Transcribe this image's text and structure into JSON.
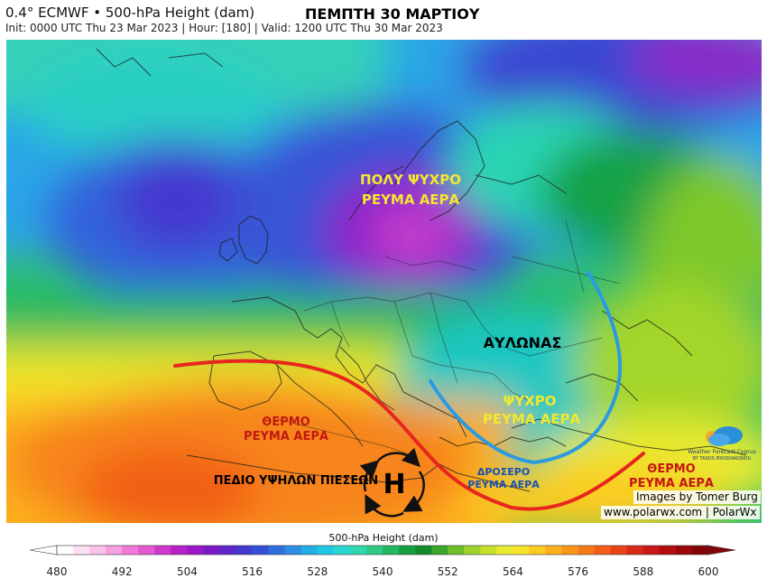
{
  "header": {
    "title": "0.4° ECMWF • 500-hPa Height (dam)",
    "subtitle": "Init: 0000 UTC Thu 23 Mar 2023 | Hour: [180] | Valid: 1200 UTC Thu 30 Mar 2023",
    "date_title": "ΠΕΜΠΤΗ 30 ΜΑΡΤΙΟΥ"
  },
  "annotations": {
    "very_cold": [
      "ΠΟΛΥ ΨΥΧΡΟ",
      "ΡΕΥΜΑ ΑΕΡΑ"
    ],
    "trough": "ΑΥΛΩΝΑΣ",
    "cold": [
      "ΨΥΧΡΟ",
      "ΡΕΥΜΑ ΑΕΡΑ"
    ],
    "warm_west": [
      "ΘΕΡΜΟ",
      "ΡΕΥΜΑ ΑΕΡΑ"
    ],
    "high_pressure": "ΠΕΔΙΟ ΥΨΗΛΩΝ ΠΙΕΣΕΩΝ",
    "high_symbol": "H",
    "cool": [
      "ΔΡΟΣΕΡΟ",
      "ΡΕΥΜΑ ΑΕΡΑ"
    ],
    "warm_east": [
      "ΘΕΡΜΟ",
      "ΡΕΥΜΑ ΑΕΡΑ"
    ]
  },
  "credits": {
    "images_by": "Images by Tomer Burg",
    "site": "www.polarwx.com | PolarWx",
    "logo_line1": "Weather Forecast Cyprus",
    "logo_line2": "BY TASOS IERODIAKONOU"
  },
  "colorbar": {
    "label": "500-hPa Height (dam)",
    "ticks": [
      "480",
      "492",
      "504",
      "516",
      "528",
      "540",
      "552",
      "564",
      "576",
      "588",
      "600"
    ],
    "colors": [
      "#ffffff",
      "#fde0f2",
      "#fbc2e8",
      "#f79ee0",
      "#f07ad8",
      "#e458d2",
      "#d037cc",
      "#b520c9",
      "#9a17c8",
      "#7d1ac8",
      "#5e26cb",
      "#4338cf",
      "#3550d6",
      "#2f6edd",
      "#2b8ee4",
      "#22aee6",
      "#1ec8e4",
      "#28d8d0",
      "#31d6ad",
      "#2fcb86",
      "#22b85f",
      "#169f42",
      "#0f8a2d",
      "#3aa62a",
      "#6dbe2a",
      "#9fd32b",
      "#c7df2c",
      "#e8eb30",
      "#f6e42a",
      "#fccb22",
      "#fcb01e",
      "#fa951b",
      "#f77a18",
      "#f25e17",
      "#e94217",
      "#d92a17",
      "#c91616",
      "#b30d10",
      "#9a080c",
      "#820406"
    ]
  },
  "lines": {
    "jet_color": "#e8261e",
    "trough_color": "#2a9be0"
  }
}
